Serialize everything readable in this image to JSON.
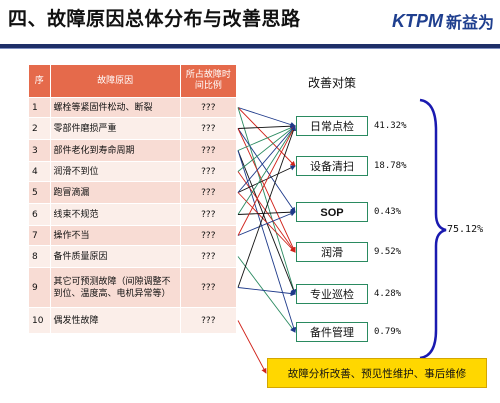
{
  "title": "四、故障原因总体分布与改善思路",
  "logo": {
    "mark": "KTPM",
    "text": "新益为"
  },
  "table": {
    "headers": [
      "序",
      "故障原因",
      "所占故障时间比例"
    ],
    "rows": [
      {
        "no": "1",
        "cause": "螺栓等紧固件松动、断裂",
        "ratio": "???"
      },
      {
        "no": "2",
        "cause": "零部件磨损严重",
        "ratio": "???"
      },
      {
        "no": "3",
        "cause": "部件老化到寿命周期",
        "ratio": "???"
      },
      {
        "no": "4",
        "cause": "润滑不到位",
        "ratio": "???"
      },
      {
        "no": "5",
        "cause": "跑冒滴漏",
        "ratio": "???"
      },
      {
        "no": "6",
        "cause": "线束不规范",
        "ratio": "???"
      },
      {
        "no": "7",
        "cause": "操作不当",
        "ratio": "???"
      },
      {
        "no": "8",
        "cause": "备件质量原因",
        "ratio": "???"
      },
      {
        "no": "9",
        "cause": "其它可预测故障（间隙调整不到位、温度高、电机异常等）",
        "ratio": "???"
      },
      {
        "no": "10",
        "cause": "偶发性故障",
        "ratio": "???"
      }
    ]
  },
  "measures": {
    "title": "改善对策",
    "items": [
      {
        "label": "日常点检",
        "pct": "41.32%"
      },
      {
        "label": "设备清扫",
        "pct": "18.78%"
      },
      {
        "label": "SOP",
        "pct": "0.43%"
      },
      {
        "label": "润滑",
        "pct": "9.52%"
      },
      {
        "label": "专业巡检",
        "pct": "4.28%"
      },
      {
        "label": "备件管理",
        "pct": "0.79%"
      }
    ],
    "total": "75.12%",
    "final_box": "故障分析改善、预见性维护、事后维修"
  },
  "colors": {
    "header_row": "#e56a4b",
    "row_light": "#fbeee9",
    "row_dark": "#f8dcd4",
    "box_border": "#2a8a60",
    "final_bg": "#ffd700",
    "brace": "#1a1ab0",
    "rule": "#1e2f68"
  },
  "connections": [
    [
      1,
      1
    ],
    [
      1,
      2
    ],
    [
      1,
      5
    ],
    [
      2,
      1
    ],
    [
      2,
      3
    ],
    [
      2,
      4
    ],
    [
      3,
      1
    ],
    [
      3,
      5
    ],
    [
      3,
      6
    ],
    [
      4,
      4
    ],
    [
      4,
      1
    ],
    [
      5,
      2
    ],
    [
      5,
      1
    ],
    [
      5,
      4
    ],
    [
      6,
      1
    ],
    [
      6,
      3
    ],
    [
      7,
      3
    ],
    [
      7,
      1
    ],
    [
      8,
      6
    ],
    [
      9,
      1
    ],
    [
      9,
      5
    ],
    [
      10,
      7
    ]
  ]
}
